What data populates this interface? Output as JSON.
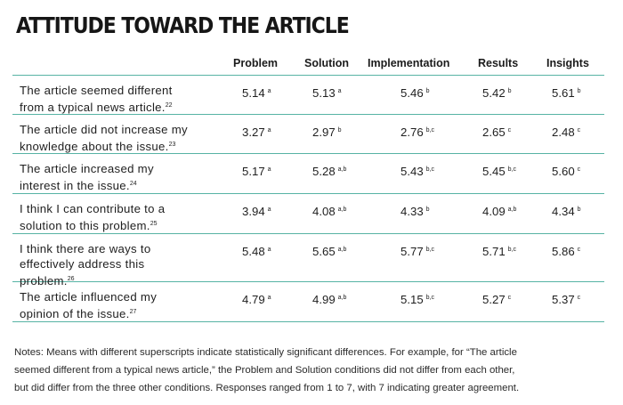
{
  "title": "ATTITUDE TOWARD THE ARTICLE",
  "columns": [
    "Problem",
    "Solution",
    "Implementation",
    "Results",
    "Insights"
  ],
  "rows": [
    {
      "label_lines": [
        "The article seemed different",
        "from a typical news article."
      ],
      "ref": "22",
      "cells": [
        {
          "value": "5.14",
          "sup": "a"
        },
        {
          "value": "5.13",
          "sup": "a"
        },
        {
          "value": "5.46",
          "sup": "b"
        },
        {
          "value": "5.42",
          "sup": "b"
        },
        {
          "value": "5.61",
          "sup": "b"
        }
      ]
    },
    {
      "label_lines": [
        "The article did not increase my",
        "knowledge about the issue."
      ],
      "ref": "23",
      "cells": [
        {
          "value": "3.27",
          "sup": "a"
        },
        {
          "value": "2.97",
          "sup": "b"
        },
        {
          "value": "2.76",
          "sup": "b,c"
        },
        {
          "value": "2.65",
          "sup": "c"
        },
        {
          "value": "2.48",
          "sup": "c"
        }
      ]
    },
    {
      "label_lines": [
        "The article increased my",
        "interest in the issue."
      ],
      "ref": "24",
      "cells": [
        {
          "value": "5.17",
          "sup": "a"
        },
        {
          "value": "5.28",
          "sup": "a,b"
        },
        {
          "value": "5.43",
          "sup": "b,c"
        },
        {
          "value": "5.45",
          "sup": "b,c"
        },
        {
          "value": "5.60",
          "sup": "c"
        }
      ]
    },
    {
      "label_lines": [
        "I think I can contribute to a",
        "solution to this problem."
      ],
      "ref": "25",
      "cells": [
        {
          "value": "3.94",
          "sup": "a"
        },
        {
          "value": "4.08",
          "sup": "a,b"
        },
        {
          "value": "4.33",
          "sup": "b"
        },
        {
          "value": "4.09",
          "sup": "a,b"
        },
        {
          "value": "4.34",
          "sup": "b"
        }
      ]
    },
    {
      "label_lines": [
        "I think there are ways to",
        "effectively address this",
        "problem."
      ],
      "ref": "26",
      "cells": [
        {
          "value": "5.48",
          "sup": "a"
        },
        {
          "value": "5.65",
          "sup": "a,b"
        },
        {
          "value": "5.77",
          "sup": "b,c"
        },
        {
          "value": "5.71",
          "sup": "b,c"
        },
        {
          "value": "5.86",
          "sup": "c"
        }
      ]
    },
    {
      "label_lines": [
        "The article influenced my",
        "opinion of the issue."
      ],
      "ref": "27",
      "cells": [
        {
          "value": "4.79",
          "sup": "a"
        },
        {
          "value": "4.99",
          "sup": "a,b"
        },
        {
          "value": "5.15",
          "sup": "b,c"
        },
        {
          "value": "5.27",
          "sup": "c"
        },
        {
          "value": "5.37",
          "sup": "c"
        }
      ]
    }
  ],
  "notes_lines": [
    "Notes: Means with different superscripts indicate statistically significant differences. For example, for “The article",
    "seemed different from a typical news article,” the Problem and Solution conditions did not differ from each other,",
    "but did differ from the three other conditions. Responses ranged from 1 to 7, with 7 indicating greater agreement."
  ]
}
